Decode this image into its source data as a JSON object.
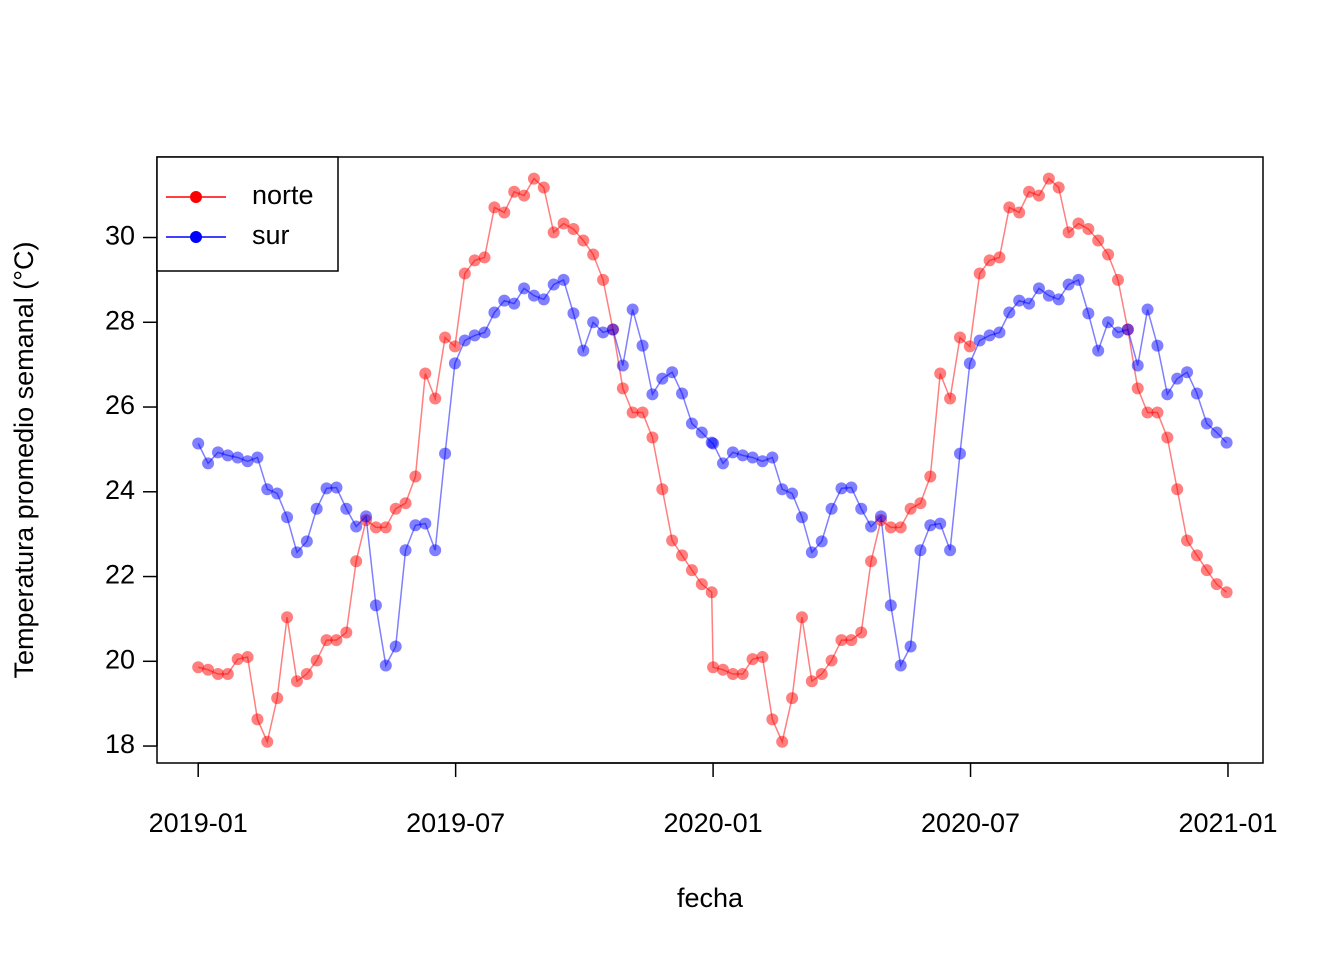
{
  "chart_data": {
    "type": "line",
    "xlabel": "fecha",
    "ylabel": "Temperatura promedio semanal (°C)",
    "x": [
      2019.0,
      2019.0192,
      2019.0384,
      2019.0575,
      2019.0767,
      2019.0959,
      2019.1151,
      2019.1342,
      2019.1534,
      2019.1726,
      2019.1918,
      2019.211,
      2019.2301,
      2019.2493,
      2019.2685,
      2019.2877,
      2019.3068,
      2019.326,
      2019.3452,
      2019.3644,
      2019.3836,
      2019.4027,
      2019.4219,
      2019.4411,
      2019.4603,
      2019.4795,
      2019.4986,
      2019.5178,
      2019.537,
      2019.5562,
      2019.5753,
      2019.5945,
      2019.6137,
      2019.6329,
      2019.6521,
      2019.6712,
      2019.6904,
      2019.7096,
      2019.7288,
      2019.7479,
      2019.7671,
      2019.7863,
      2019.8055,
      2019.8247,
      2019.8438,
      2019.863,
      2019.8822,
      2019.9014,
      2019.9205,
      2019.9397,
      2019.9589,
      2019.9781,
      2019.9973,
      2020.0,
      2020.0192,
      2020.0384,
      2020.0575,
      2020.0767,
      2020.0959,
      2020.1151,
      2020.1342,
      2020.1534,
      2020.1726,
      2020.1918,
      2020.211,
      2020.2301,
      2020.2493,
      2020.2685,
      2020.2877,
      2020.3068,
      2020.326,
      2020.3452,
      2020.3644,
      2020.3836,
      2020.4027,
      2020.4219,
      2020.4411,
      2020.4603,
      2020.4795,
      2020.4986,
      2020.5178,
      2020.537,
      2020.5562,
      2020.5753,
      2020.5945,
      2020.6137,
      2020.6329,
      2020.6521,
      2020.6712,
      2020.6904,
      2020.7096,
      2020.7288,
      2020.7479,
      2020.7671,
      2020.7863,
      2020.8055,
      2020.8247,
      2020.8438,
      2020.863,
      2020.8822,
      2020.9014,
      2020.9205,
      2020.9397,
      2020.9589,
      2020.9781,
      2020.9973
    ],
    "series": [
      {
        "name": "norte",
        "color": "#ff0000",
        "values": [
          19.86,
          19.8,
          19.7,
          19.7,
          20.05,
          20.1,
          18.63,
          18.1,
          19.13,
          21.04,
          19.53,
          19.7,
          20.02,
          20.5,
          20.5,
          20.68,
          22.36,
          23.33,
          23.16,
          23.16,
          23.6,
          23.73,
          24.36,
          26.79,
          26.2,
          27.64,
          27.43,
          29.15,
          29.46,
          29.53,
          30.71,
          30.59,
          31.08,
          30.99,
          31.39,
          31.18,
          30.12,
          30.33,
          30.2,
          29.93,
          29.6,
          29.0,
          27.83,
          26.44,
          25.87,
          25.87,
          25.28,
          24.06,
          22.85,
          22.5,
          22.15,
          21.82,
          21.63,
          19.86,
          19.8,
          19.7,
          19.7,
          20.05,
          20.1,
          18.63,
          18.1,
          19.13,
          21.04,
          19.53,
          19.7,
          20.02,
          20.5,
          20.5,
          20.68,
          22.36,
          23.33,
          23.16,
          23.16,
          23.6,
          23.73,
          24.36,
          26.79,
          26.2,
          27.64,
          27.43,
          29.15,
          29.46,
          29.53,
          30.71,
          30.59,
          31.08,
          30.99,
          31.39,
          31.18,
          30.12,
          30.33,
          30.2,
          29.93,
          29.6,
          29.0,
          27.83,
          26.44,
          25.87,
          25.87,
          25.28,
          24.06,
          22.85,
          22.5,
          22.15,
          21.82,
          21.63
        ]
      },
      {
        "name": "sur",
        "color": "#0000ff",
        "values": [
          25.14,
          24.67,
          24.93,
          24.86,
          24.81,
          24.72,
          24.81,
          24.06,
          23.96,
          23.4,
          22.57,
          22.83,
          23.6,
          24.08,
          24.1,
          23.6,
          23.18,
          23.42,
          21.32,
          19.9,
          20.35,
          22.62,
          23.21,
          23.25,
          22.62,
          24.9,
          27.03,
          27.57,
          27.69,
          27.76,
          28.23,
          28.51,
          28.44,
          28.8,
          28.63,
          28.54,
          28.89,
          29.0,
          28.21,
          27.33,
          28.0,
          27.76,
          27.83,
          26.98,
          28.3,
          27.45,
          26.3,
          26.67,
          26.82,
          26.32,
          25.61,
          25.4,
          25.16,
          25.14,
          24.67,
          24.93,
          24.86,
          24.81,
          24.72,
          24.81,
          24.06,
          23.96,
          23.4,
          22.57,
          22.83,
          23.6,
          24.08,
          24.1,
          23.6,
          23.18,
          23.42,
          21.32,
          19.9,
          20.35,
          22.62,
          23.21,
          23.25,
          22.62,
          24.9,
          27.03,
          27.57,
          27.69,
          27.76,
          28.23,
          28.51,
          28.44,
          28.8,
          28.63,
          28.54,
          28.89,
          29.0,
          28.21,
          27.33,
          28.0,
          27.76,
          27.83,
          26.98,
          28.3,
          27.45,
          26.3,
          26.67,
          26.82,
          26.32,
          25.61,
          25.4,
          25.16
        ]
      }
    ],
    "xlim": [
      2018.92,
      2021.068
    ],
    "xticks": [
      {
        "value": 2019,
        "label": "2019-01"
      },
      {
        "value": 2019.5,
        "label": "2019-07"
      },
      {
        "value": 2020,
        "label": "2020-01"
      },
      {
        "value": 2020.5,
        "label": "2020-07"
      },
      {
        "value": 2021,
        "label": "2021-01"
      }
    ],
    "ylim": [
      17.6,
      31.9
    ],
    "yticks": [
      18,
      20,
      22,
      24,
      26,
      28,
      30
    ],
    "legend": "topleft",
    "grid": false
  }
}
